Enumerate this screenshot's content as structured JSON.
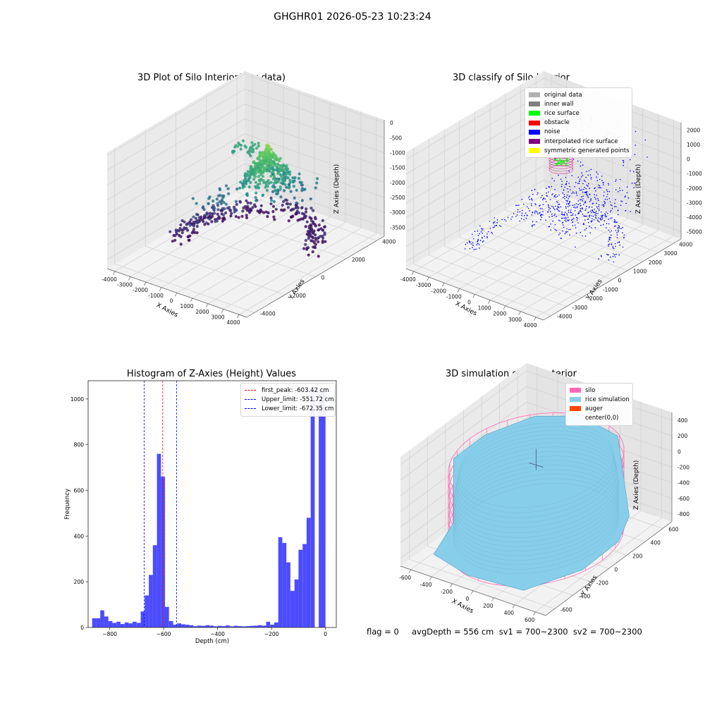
{
  "suptitle": "GHGHR01 2026-05-23 10:23:24",
  "status_line": "flag = 0     avgDepth = 556 cm  sv1 = 700~2300  sv2 = 700~2300",
  "colors": {
    "silo": "#ff69b4",
    "rice_simulation": "#87ceeb",
    "auger": "#ff4500",
    "noise": "#0000ff",
    "rice_surface": "#00ff00",
    "interpolated": "#800080",
    "hist_bar": "#0000ff"
  },
  "chart_data": [
    {
      "type": "scatter",
      "panel": "top-left",
      "title": "3D Plot of Silo Interior(row data)",
      "xlabel": "X Axies",
      "ylabel": "Y Axies",
      "zlabel": "Z Axies (Depth)",
      "x_ticks": [
        "-4000",
        "-3000",
        "-2000",
        "-1000",
        "0",
        "1000",
        "2000",
        "3000",
        "4000"
      ],
      "y_ticks": [
        "-4000",
        "-2000",
        "0",
        "2000",
        "4000"
      ],
      "z_ticks": [
        "0",
        "-500",
        "-1000",
        "-1500",
        "-2000",
        "-2500",
        "-3000",
        "-3500"
      ],
      "xlim": [
        -4500,
        4500
      ],
      "ylim": [
        -4500,
        4500
      ],
      "zlim": [
        -3800,
        100
      ],
      "colormap": "viridis",
      "grid": true
    },
    {
      "type": "scatter",
      "panel": "top-right",
      "title": "3D classify of Silo Interior",
      "xlabel": "X Axies",
      "ylabel": "Y Axies",
      "zlabel": "Z Axies (Depth)",
      "x_ticks": [
        "-4000",
        "-3000",
        "-2000",
        "-1000",
        "0",
        "1000",
        "2000",
        "3000",
        "4000"
      ],
      "y_ticks": [
        "-4000",
        "-3000",
        "-2000",
        "-1000",
        "0",
        "1000",
        "2000",
        "3000",
        "4000"
      ],
      "z_ticks": [
        "2000",
        "1000",
        "0",
        "-1000",
        "-2000",
        "-3000",
        "-4000",
        "-5000"
      ],
      "xlim": [
        -4500,
        4500
      ],
      "ylim": [
        -4500,
        4500
      ],
      "zlim": [
        -5500,
        2500
      ],
      "legend": [
        {
          "label": "original data",
          "color": "#b0b0b0"
        },
        {
          "label": "inner wall",
          "color": "#808080"
        },
        {
          "label": "rice surface",
          "color": "#00ff00"
        },
        {
          "label": "obstacle",
          "color": "#ff0000"
        },
        {
          "label": "noise",
          "color": "#0000ff"
        },
        {
          "label": "interpolated rice surface",
          "color": "#800080"
        },
        {
          "label": "symmetric generated points",
          "color": "#ffff00"
        }
      ],
      "legend_position": "top-right",
      "grid": true
    },
    {
      "type": "bar",
      "panel": "bottom-left",
      "title": "Histogram of Z-Axies (Height) Values",
      "xlabel": "Depth (cm)",
      "ylabel": "Frequency",
      "xlim": [
        -880,
        40
      ],
      "ylim": [
        0,
        1080
      ],
      "x_ticks": [
        -800,
        -600,
        -400,
        -200,
        0
      ],
      "y_ticks": [
        0,
        200,
        400,
        600,
        800,
        1000
      ],
      "bins": [
        {
          "x0": -865,
          "x1": -850,
          "value": 40
        },
        {
          "x0": -850,
          "x1": -835,
          "value": 40
        },
        {
          "x0": -835,
          "x1": -820,
          "value": 75
        },
        {
          "x0": -820,
          "x1": -805,
          "value": 48
        },
        {
          "x0": -805,
          "x1": -790,
          "value": 28
        },
        {
          "x0": -790,
          "x1": -775,
          "value": 20
        },
        {
          "x0": -775,
          "x1": -760,
          "value": 25
        },
        {
          "x0": -760,
          "x1": -745,
          "value": 15
        },
        {
          "x0": -745,
          "x1": -730,
          "value": 22
        },
        {
          "x0": -730,
          "x1": -715,
          "value": 18
        },
        {
          "x0": -715,
          "x1": -700,
          "value": 25
        },
        {
          "x0": -700,
          "x1": -685,
          "value": 20
        },
        {
          "x0": -685,
          "x1": -670,
          "value": 70
        },
        {
          "x0": -670,
          "x1": -655,
          "value": 140
        },
        {
          "x0": -655,
          "x1": -640,
          "value": 230
        },
        {
          "x0": -640,
          "x1": -625,
          "value": 360
        },
        {
          "x0": -625,
          "x1": -610,
          "value": 760
        },
        {
          "x0": -610,
          "x1": -595,
          "value": 660
        },
        {
          "x0": -595,
          "x1": -580,
          "value": 90
        },
        {
          "x0": -580,
          "x1": -565,
          "value": 28
        },
        {
          "x0": -565,
          "x1": -550,
          "value": 12
        },
        {
          "x0": -550,
          "x1": -535,
          "value": 18
        },
        {
          "x0": -535,
          "x1": -520,
          "value": 14
        },
        {
          "x0": -520,
          "x1": -505,
          "value": 12
        },
        {
          "x0": -505,
          "x1": -490,
          "value": 10
        },
        {
          "x0": -490,
          "x1": -475,
          "value": 6
        },
        {
          "x0": -475,
          "x1": -460,
          "value": 8
        },
        {
          "x0": -460,
          "x1": -445,
          "value": 7
        },
        {
          "x0": -445,
          "x1": -430,
          "value": 10
        },
        {
          "x0": -430,
          "x1": -415,
          "value": 8
        },
        {
          "x0": -415,
          "x1": -400,
          "value": 5
        },
        {
          "x0": -400,
          "x1": -385,
          "value": 7
        },
        {
          "x0": -385,
          "x1": -370,
          "value": 6
        },
        {
          "x0": -370,
          "x1": -355,
          "value": 9
        },
        {
          "x0": -355,
          "x1": -340,
          "value": 5
        },
        {
          "x0": -340,
          "x1": -325,
          "value": 7
        },
        {
          "x0": -325,
          "x1": -310,
          "value": 6
        },
        {
          "x0": -310,
          "x1": -295,
          "value": 5
        },
        {
          "x0": -295,
          "x1": -280,
          "value": 6
        },
        {
          "x0": -280,
          "x1": -265,
          "value": 7
        },
        {
          "x0": -265,
          "x1": -250,
          "value": 8
        },
        {
          "x0": -250,
          "x1": -235,
          "value": 10
        },
        {
          "x0": -235,
          "x1": -220,
          "value": 8
        },
        {
          "x0": -220,
          "x1": -205,
          "value": 25
        },
        {
          "x0": -205,
          "x1": -190,
          "value": 12
        },
        {
          "x0": -190,
          "x1": -175,
          "value": 22
        },
        {
          "x0": -175,
          "x1": -160,
          "value": 395
        },
        {
          "x0": -160,
          "x1": -145,
          "value": 370
        },
        {
          "x0": -145,
          "x1": -130,
          "value": 285
        },
        {
          "x0": -130,
          "x1": -115,
          "value": 160
        },
        {
          "x0": -115,
          "x1": -100,
          "value": 210
        },
        {
          "x0": -100,
          "x1": -85,
          "value": 340
        },
        {
          "x0": -85,
          "x1": -70,
          "value": 365
        },
        {
          "x0": -70,
          "x1": -55,
          "value": 480
        },
        {
          "x0": -55,
          "x1": -40,
          "value": 1040
        },
        {
          "x0": -25,
          "x1": 0,
          "value": 1040
        }
      ],
      "vlines": [
        {
          "x": -603.42,
          "color": "#ff0000",
          "label": "first_peak: -603.42 cm"
        },
        {
          "x": -551.72,
          "color": "#0000ff",
          "label": "Upper_limit: -551.72 cm"
        },
        {
          "x": -672.35,
          "color": "#0000ff",
          "label": "Lower_limit: -672.35 cm"
        }
      ],
      "legend_position": "top-right",
      "grid": false
    },
    {
      "type": "surface",
      "panel": "bottom-right",
      "title": "3D simulation of Silo Interior",
      "xlabel": "X Axies",
      "ylabel": "Y Axies",
      "zlabel": "Z Axies (Depth)",
      "x_ticks": [
        "-600",
        "-400",
        "-200",
        "0",
        "200",
        "400",
        "600"
      ],
      "y_ticks": [
        "-600",
        "-400",
        "-200",
        "0",
        "200",
        "400",
        "600"
      ],
      "z_ticks": [
        "400",
        "200",
        "0",
        "-200",
        "-400",
        "-600",
        "-800"
      ],
      "xlim": [
        -700,
        700
      ],
      "ylim": [
        -700,
        700
      ],
      "zlim": [
        -900,
        500
      ],
      "legend": [
        {
          "label": "silo",
          "color": "#ff69b4"
        },
        {
          "label": "rice simulation",
          "color": "#87ceeb"
        },
        {
          "label": "auger",
          "color": "#ff4500"
        },
        {
          "label": "center(0,0)",
          "color": ""
        }
      ],
      "legend_position": "top-right",
      "grid": true
    }
  ]
}
